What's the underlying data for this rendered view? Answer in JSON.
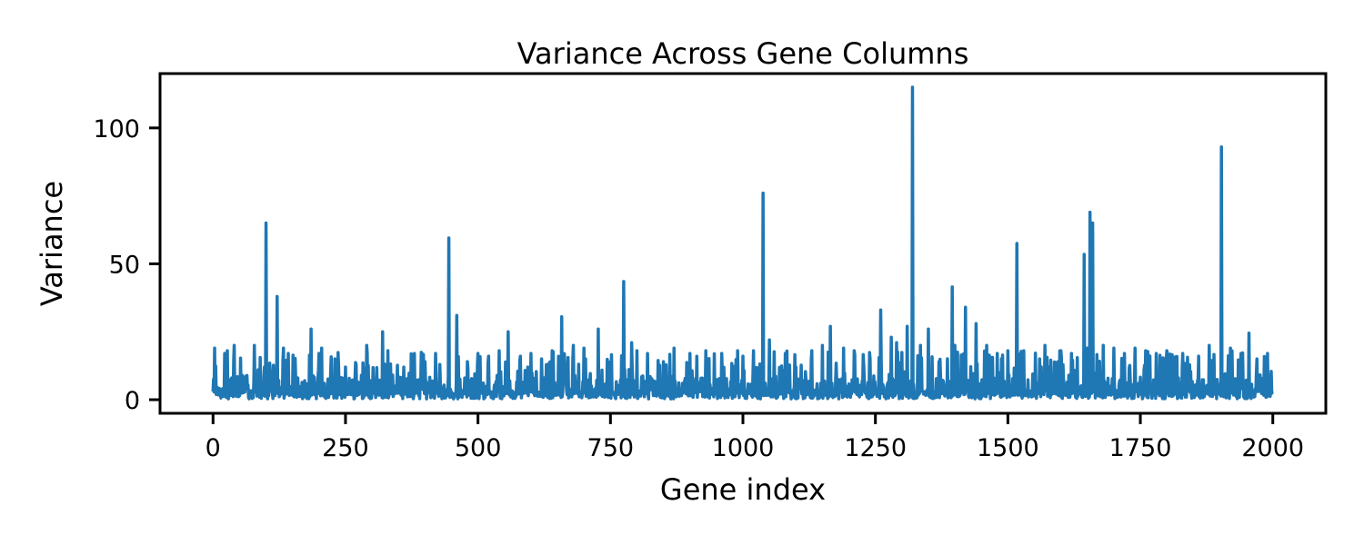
{
  "chart_data": {
    "type": "line",
    "title": "Variance Across Gene Columns",
    "xlabel": "Gene index",
    "ylabel": "Variance",
    "xlim": [
      -100,
      2100
    ],
    "ylim": [
      -5,
      120
    ],
    "xticks": [
      0,
      250,
      500,
      750,
      1000,
      1250,
      1500,
      1750,
      2000
    ],
    "yticks": [
      0,
      50,
      100
    ],
    "xtick_labels": [
      "0",
      "250",
      "500",
      "750",
      "1000",
      "1250",
      "1500",
      "1750",
      "2000"
    ],
    "ytick_labels": [
      "0",
      "50",
      "100"
    ],
    "grid": false,
    "series_color": "#1f77b4",
    "n_points": 2000,
    "baseline": {
      "typical_max": 18,
      "typical_min": 0.3,
      "seed": 7
    },
    "series": [
      {
        "x": [
          0,
          3,
          7,
          18,
          22,
          27,
          35,
          40,
          45,
          55,
          65,
          78,
          85,
          97,
          100,
          108,
          121,
          133,
          142,
          160,
          185,
          200,
          205,
          230,
          250,
          270,
          290,
          320,
          330,
          360,
          380,
          400,
          420,
          445,
          460,
          480,
          500,
          520,
          540,
          557,
          580,
          600,
          620,
          640,
          658,
          680,
          700,
          727,
          750,
          775,
          790,
          800,
          820,
          850,
          870,
          900,
          930,
          960,
          990,
          1000,
          1020,
          1038,
          1050,
          1080,
          1100,
          1130,
          1150,
          1165,
          1190,
          1210,
          1240,
          1260,
          1280,
          1290,
          1310,
          1320,
          1335,
          1350,
          1370,
          1395,
          1400,
          1420,
          1440,
          1460,
          1480,
          1500,
          1517,
          1530,
          1560,
          1570,
          1600,
          1620,
          1644,
          1650,
          1655,
          1660,
          1680,
          1700,
          1720,
          1740,
          1760,
          1780,
          1800,
          1830,
          1860,
          1880,
          1903,
          1920,
          1940,
          1955,
          1970,
          1990,
          2000
        ],
        "y": [
          3,
          19,
          2,
          4,
          17,
          18,
          8,
          20,
          5,
          9,
          4,
          20,
          11,
          12,
          65,
          10,
          38,
          19,
          17,
          8,
          26,
          17,
          19,
          15,
          12,
          13,
          20,
          25,
          18,
          12,
          17,
          14,
          17,
          59.5,
          31,
          14,
          17,
          16,
          18,
          25,
          16,
          17,
          15,
          18,
          30.5,
          20,
          19,
          26,
          14,
          43.5,
          21,
          18,
          17,
          14,
          19,
          17,
          18,
          17,
          18,
          16,
          18,
          76,
          22,
          17,
          12,
          18,
          20,
          27,
          19,
          18,
          15,
          33,
          23,
          21,
          27,
          115,
          20,
          26,
          14,
          41.5,
          20,
          34,
          28,
          20,
          17,
          18,
          57.5,
          18,
          15,
          20,
          18,
          17,
          53.5,
          19,
          69,
          65,
          20,
          19,
          17,
          19,
          18,
          17,
          18,
          17,
          16,
          20,
          93,
          19,
          17,
          24.5,
          15,
          17,
          3
        ]
      }
    ]
  }
}
